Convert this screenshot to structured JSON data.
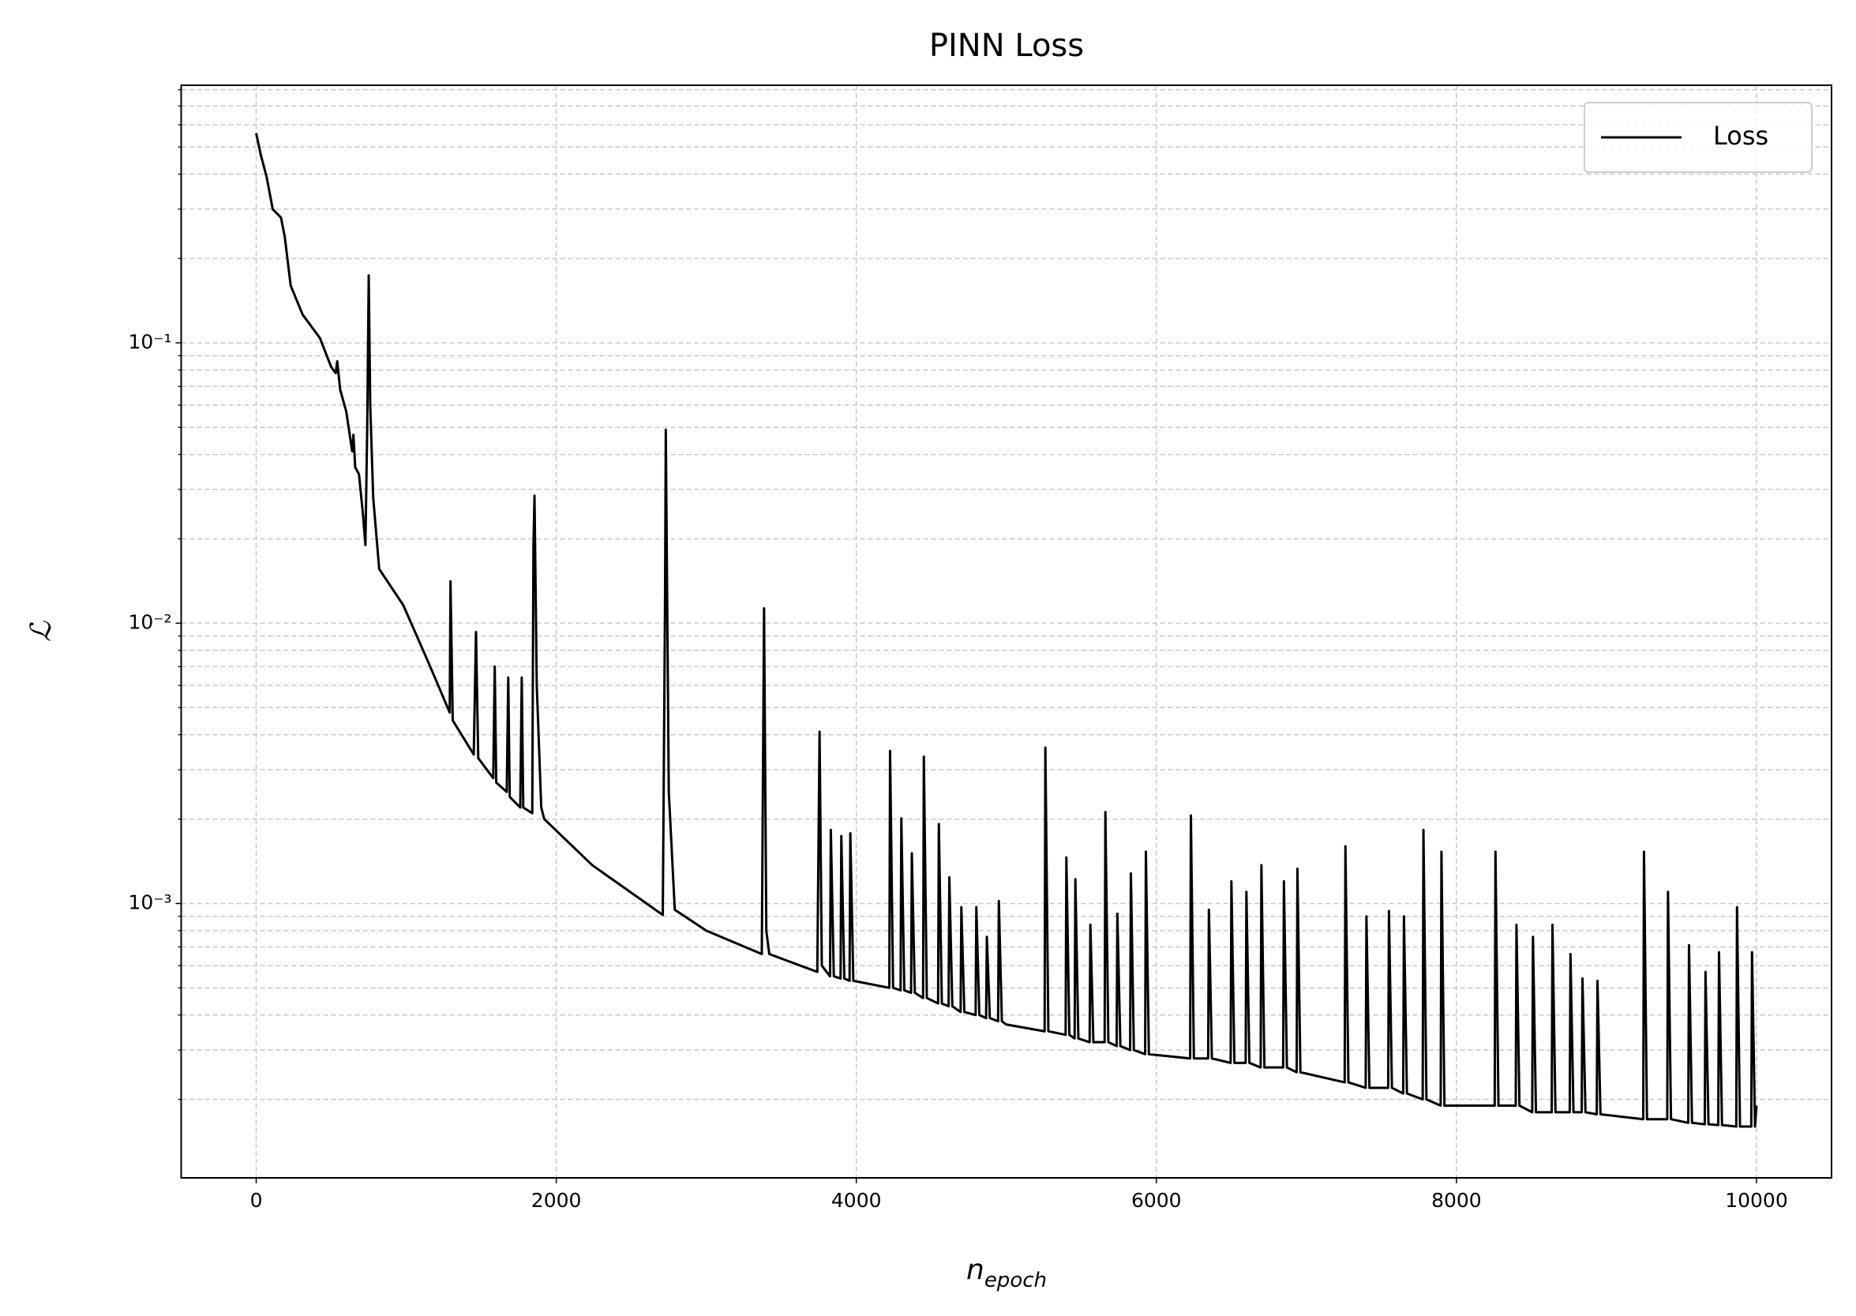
{
  "chart_data": {
    "type": "line",
    "title": "PINN Loss",
    "xlabel": "n",
    "xlabel_sub": "epoch",
    "ylabel": "ℒ",
    "yscale": "log",
    "grid": true,
    "legend": "upper right",
    "xlim": [
      -500,
      10500
    ],
    "xticks": [
      0,
      2000,
      4000,
      6000,
      8000,
      10000
    ],
    "ylim": [
      0.000105,
      0.83
    ],
    "yticks": [
      {
        "value": 0.001,
        "label": "10⁻³"
      },
      {
        "value": 0.01,
        "label": "10⁻²"
      },
      {
        "value": 0.1,
        "label": "10⁻¹"
      }
    ],
    "yminorticks": [
      0.0002,
      0.0003,
      0.0004,
      0.0005,
      0.0006,
      0.0007,
      0.0008,
      0.0009,
      0.002,
      0.003,
      0.004,
      0.005,
      0.006,
      0.007,
      0.008,
      0.009,
      0.02,
      0.03,
      0.04,
      0.05,
      0.06,
      0.07,
      0.08,
      0.09,
      0.2,
      0.3,
      0.4,
      0.5,
      0.6,
      0.7,
      0.8
    ],
    "x": [
      0,
      30,
      70,
      110,
      165,
      190,
      230,
      310,
      425,
      500,
      530,
      540,
      560,
      600,
      640,
      648,
      660,
      685,
      710,
      728,
      740,
      750,
      760,
      780,
      820,
      980,
      1150,
      1290,
      1295,
      1310,
      1450,
      1465,
      1480,
      1580,
      1590,
      1600,
      1670,
      1680,
      1690,
      1760,
      1770,
      1780,
      1840,
      1848,
      1855,
      1870,
      1900,
      1920,
      2240,
      2710,
      2725,
      2730,
      2750,
      2790,
      3000,
      3370,
      3385,
      3400,
      3420,
      3740,
      3755,
      3770,
      3825,
      3830,
      3850,
      3895,
      3900,
      3920,
      3955,
      3960,
      3980,
      4220,
      4225,
      4245,
      4295,
      4300,
      4320,
      4365,
      4370,
      4390,
      4445,
      4450,
      4470,
      4545,
      4550,
      4570,
      4615,
      4620,
      4640,
      4695,
      4700,
      4720,
      4795,
      4800,
      4820,
      4865,
      4870,
      4890,
      4945,
      4950,
      4970,
      5000,
      5255,
      5260,
      5280,
      5395,
      5400,
      5420,
      5455,
      5460,
      5480,
      5555,
      5560,
      5580,
      5655,
      5660,
      5680,
      5735,
      5740,
      5760,
      5825,
      5830,
      5850,
      5925,
      5930,
      5950,
      6225,
      6230,
      6250,
      6345,
      6350,
      6370,
      6495,
      6500,
      6520,
      6595,
      6600,
      6620,
      6695,
      6700,
      6720,
      6845,
      6850,
      6870,
      6935,
      6940,
      6960,
      7255,
      7260,
      7280,
      7395,
      7400,
      7420,
      7545,
      7550,
      7570,
      7645,
      7650,
      7670,
      7775,
      7780,
      7800,
      7895,
      7900,
      7920,
      8255,
      8260,
      8280,
      8395,
      8400,
      8420,
      8505,
      8510,
      8530,
      8635,
      8640,
      8660,
      8755,
      8760,
      8780,
      8835,
      8840,
      8860,
      8935,
      8940,
      8960,
      9245,
      9250,
      9270,
      9405,
      9410,
      9430,
      9545,
      9550,
      9570,
      9655,
      9660,
      9680,
      9745,
      9750,
      9770,
      9865,
      9870,
      9890,
      9965,
      9970,
      9990,
      10000
    ],
    "series": [
      {
        "name": "Loss",
        "color": "#000000",
        "values": [
          0.56,
          0.47,
          0.39,
          0.3,
          0.28,
          0.24,
          0.16,
          0.126,
          0.104,
          0.082,
          0.078,
          0.086,
          0.068,
          0.057,
          0.041,
          0.047,
          0.036,
          0.034,
          0.025,
          0.019,
          0.05,
          0.174,
          0.06,
          0.028,
          0.0156,
          0.0116,
          0.0072,
          0.0048,
          0.0141,
          0.0045,
          0.0034,
          0.0093,
          0.0033,
          0.0028,
          0.007,
          0.0027,
          0.0025,
          0.0064,
          0.0024,
          0.0022,
          0.0064,
          0.0022,
          0.0021,
          0.019,
          0.0285,
          0.006,
          0.0022,
          0.002,
          0.00137,
          0.00091,
          0.012,
          0.049,
          0.0025,
          0.00095,
          0.0008,
          0.00066,
          0.0113,
          0.0008,
          0.00066,
          0.00057,
          0.0041,
          0.0006,
          0.00055,
          0.00183,
          0.00055,
          0.00054,
          0.00174,
          0.00054,
          0.00053,
          0.00178,
          0.00053,
          0.0005,
          0.0035,
          0.0005,
          0.00049,
          0.00201,
          0.00049,
          0.00048,
          0.00151,
          0.00048,
          0.00046,
          0.00334,
          0.00046,
          0.00044,
          0.00192,
          0.00044,
          0.00043,
          0.00124,
          0.00043,
          0.00041,
          0.00097,
          0.00041,
          0.0004,
          0.00097,
          0.0004,
          0.00039,
          0.00076,
          0.00039,
          0.00038,
          0.00102,
          0.00038,
          0.00037,
          0.00035,
          0.0036,
          0.00035,
          0.00034,
          0.00146,
          0.00034,
          0.00033,
          0.00122,
          0.00033,
          0.00032,
          0.00084,
          0.00032,
          0.00032,
          0.00212,
          0.00032,
          0.00031,
          0.00092,
          0.00031,
          0.0003,
          0.00128,
          0.0003,
          0.00029,
          0.00153,
          0.00029,
          0.00028,
          0.00206,
          0.00028,
          0.00028,
          0.00095,
          0.00028,
          0.00027,
          0.0012,
          0.00027,
          0.00027,
          0.0011,
          0.00027,
          0.00026,
          0.00137,
          0.00026,
          0.00026,
          0.0012,
          0.00026,
          0.00025,
          0.00133,
          0.00025,
          0.00023,
          0.0016,
          0.00023,
          0.00022,
          0.0009,
          0.00022,
          0.00022,
          0.00094,
          0.00022,
          0.00021,
          0.0009,
          0.00021,
          0.0002,
          0.00183,
          0.0002,
          0.00019,
          0.00153,
          0.00019,
          0.00019,
          0.00153,
          0.00019,
          0.00019,
          0.00084,
          0.00019,
          0.00018,
          0.00076,
          0.00018,
          0.00018,
          0.00084,
          0.00018,
          0.00018,
          0.00066,
          0.00018,
          0.00018,
          0.00054,
          0.00018,
          0.000177,
          0.00053,
          0.000177,
          0.00017,
          0.00153,
          0.00017,
          0.00017,
          0.0011,
          0.00017,
          0.000165,
          0.00071,
          0.000165,
          0.000163,
          0.00057,
          0.000163,
          0.000162,
          0.00067,
          0.000162,
          0.00016,
          0.00097,
          0.00016,
          0.00016,
          0.00067,
          0.00016,
          0.00019
        ]
      }
    ]
  }
}
